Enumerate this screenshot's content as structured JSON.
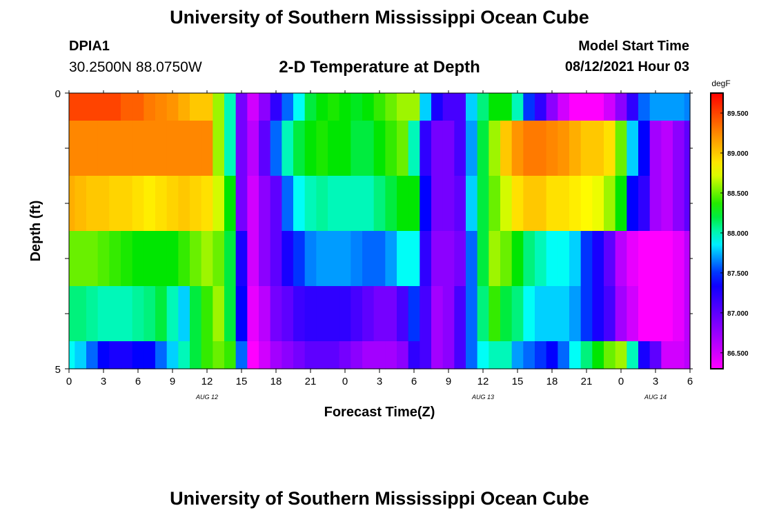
{
  "header": {
    "title": "University of Southern Mississippi Ocean Cube",
    "station": "DPIA1",
    "coordinates": "30.2500N  88.0750W",
    "plot_title": "2-D Temperature at Depth",
    "start_label": "Model Start Time",
    "start_time": "08/12/2021 Hour 03"
  },
  "footer": {
    "title": "University of Southern Mississippi Ocean Cube"
  },
  "chart_data": {
    "type": "heatmap",
    "title": "2-D Temperature at Depth",
    "xlabel": "Forecast Time(Z)",
    "ylabel": "Depth (ft)",
    "xlim": [
      0,
      54
    ],
    "ylim": [
      0,
      5
    ],
    "x_tick_values": [
      0,
      3,
      6,
      9,
      12,
      15,
      18,
      21,
      24,
      27,
      30,
      33,
      36,
      39,
      42,
      45,
      48,
      51,
      54
    ],
    "x_tick_labels": [
      "0",
      "3",
      "6",
      "9",
      "12",
      "15",
      "18",
      "21",
      "0",
      "3",
      "6",
      "9",
      "12",
      "15",
      "18",
      "21",
      "0",
      "3",
      "6"
    ],
    "y_tick_labels": [
      "0",
      "5"
    ],
    "date_labels": [
      {
        "text": "AUG  12",
        "x": 12
      },
      {
        "text": "AUG  13",
        "x": 36
      },
      {
        "text": "AUG  14",
        "x": 51
      }
    ],
    "depth_bins": [
      [
        0,
        0.5
      ],
      [
        0.5,
        1.5
      ],
      [
        1.5,
        2.5
      ],
      [
        2.5,
        3.5
      ],
      [
        3.5,
        4.5
      ],
      [
        4.5,
        5
      ]
    ],
    "time_start": 0,
    "time_step": 1,
    "colorbar": {
      "unit": "degF",
      "min": 86.3,
      "max": 89.75,
      "tick_values": [
        86.5,
        87.0,
        87.5,
        88.0,
        88.5,
        89.0,
        89.5
      ],
      "tick_labels": [
        "86.500",
        "87.000",
        "87.500",
        "88.000",
        "88.500",
        "89.000",
        "89.500"
      ]
    },
    "temperature_degF": [
      [
        89.5,
        89.5,
        89.5,
        89.5,
        89.5,
        89.4,
        89.4,
        89.3,
        89.25,
        89.2,
        89.1,
        89.0,
        89.0,
        88.6,
        88.0,
        86.9,
        86.5,
        86.8,
        87.2,
        87.6,
        87.9,
        88.2,
        88.3,
        88.35,
        88.3,
        88.25,
        88.3,
        88.4,
        88.5,
        88.6,
        88.6,
        87.8,
        87.3,
        87.1,
        87.1,
        87.8,
        88.1,
        88.3,
        88.3,
        88.0,
        87.5,
        87.2,
        86.8,
        86.5,
        86.2,
        86.2,
        86.2,
        86.5,
        86.8,
        87.2,
        87.6,
        87.7,
        87.7,
        87.7,
        87.65
      ],
      [
        89.25,
        89.25,
        89.25,
        89.25,
        89.25,
        89.25,
        89.25,
        89.25,
        89.25,
        89.25,
        89.25,
        89.25,
        89.25,
        88.6,
        88.0,
        86.9,
        86.6,
        87.0,
        87.6,
        88.0,
        88.2,
        88.3,
        88.35,
        88.3,
        88.3,
        88.2,
        88.2,
        88.3,
        88.4,
        88.5,
        88.0,
        87.2,
        86.9,
        86.9,
        87.1,
        87.7,
        88.2,
        88.6,
        89.0,
        89.2,
        89.3,
        89.3,
        89.25,
        89.2,
        89.1,
        89.0,
        89.0,
        88.9,
        88.5,
        87.8,
        87.4,
        86.7,
        86.6,
        86.8,
        87.0
      ],
      [
        89.1,
        89.05,
        89.0,
        89.0,
        88.95,
        88.95,
        88.9,
        88.85,
        88.9,
        88.95,
        89.0,
        88.95,
        88.9,
        88.7,
        88.3,
        86.9,
        86.5,
        86.8,
        87.0,
        87.6,
        87.9,
        88.0,
        88.05,
        88.0,
        88.0,
        88.0,
        88.0,
        88.1,
        88.2,
        88.3,
        88.3,
        87.4,
        86.9,
        86.9,
        87.0,
        87.8,
        88.2,
        88.5,
        88.7,
        88.9,
        89.0,
        89.0,
        88.9,
        88.9,
        88.85,
        88.8,
        88.75,
        88.6,
        88.3,
        87.4,
        87.2,
        86.7,
        86.6,
        86.8,
        87.0
      ],
      [
        88.5,
        88.5,
        88.5,
        88.45,
        88.4,
        88.35,
        88.3,
        88.3,
        88.3,
        88.3,
        88.4,
        88.5,
        88.6,
        88.5,
        88.2,
        87.3,
        86.5,
        86.8,
        87.0,
        87.3,
        87.5,
        87.65,
        87.7,
        87.7,
        87.7,
        87.65,
        87.6,
        87.6,
        87.7,
        87.9,
        87.9,
        87.2,
        86.8,
        86.8,
        86.9,
        87.6,
        88.2,
        88.6,
        88.5,
        88.3,
        88.1,
        88.0,
        87.9,
        87.9,
        87.8,
        87.5,
        87.3,
        87.0,
        86.6,
        86.4,
        86.2,
        86.2,
        86.3,
        86.4,
        86.6
      ],
      [
        88.1,
        88.1,
        88.05,
        88.0,
        88.0,
        88.0,
        88.05,
        88.1,
        88.2,
        88.0,
        87.8,
        88.2,
        88.4,
        88.6,
        88.2,
        87.4,
        86.4,
        86.6,
        86.9,
        87.0,
        87.15,
        87.2,
        87.2,
        87.2,
        87.2,
        87.1,
        87.0,
        86.9,
        86.9,
        87.1,
        87.5,
        87.1,
        86.7,
        86.8,
        87.1,
        87.6,
        88.1,
        88.4,
        88.2,
        88.1,
        87.9,
        87.8,
        87.8,
        87.8,
        87.7,
        87.5,
        87.3,
        87.1,
        86.7,
        86.5,
        86.3,
        86.2,
        86.3,
        86.4,
        86.6
      ],
      [
        87.9,
        87.8,
        87.6,
        87.4,
        87.3,
        87.3,
        87.4,
        87.4,
        87.6,
        87.8,
        88.0,
        88.2,
        88.4,
        88.5,
        88.4,
        87.6,
        86.3,
        86.5,
        86.7,
        86.8,
        86.9,
        87.0,
        87.0,
        87.0,
        86.9,
        86.8,
        86.7,
        86.7,
        86.7,
        86.8,
        87.2,
        87.1,
        86.7,
        86.8,
        87.1,
        87.6,
        87.9,
        88.0,
        88.0,
        87.7,
        87.6,
        87.5,
        87.4,
        87.6,
        87.9,
        88.1,
        88.3,
        88.5,
        88.6,
        88.0,
        87.3,
        87.0,
        86.5,
        86.5,
        86.6
      ]
    ]
  }
}
